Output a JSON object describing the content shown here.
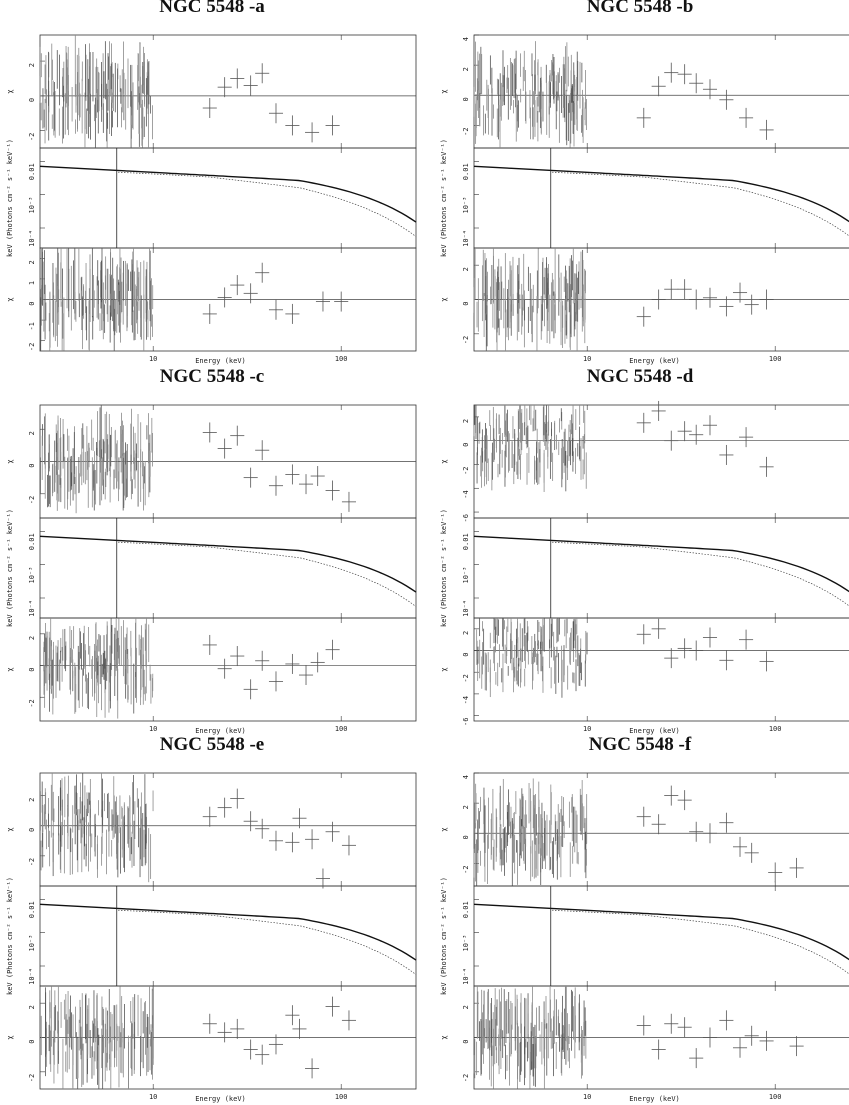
{
  "figure": {
    "x_axis_label": "Energy (keV)",
    "x_ticks": [
      "10",
      "100"
    ],
    "y_label_ratio": "χ",
    "y_label_model": "keV (Photons cm⁻² s⁻¹ keV⁻¹)"
  },
  "chart_data": [
    {
      "type": "scatter",
      "title": "NGC 5548 -a",
      "xscale": "log",
      "xlim": [
        2.5,
        250
      ],
      "xlabel": "Energy (keV)",
      "panels": [
        {
          "role": "residuals (top)",
          "ylabel": "χ",
          "ylim": [
            -3,
            3.5
          ],
          "yticks": [
            -2,
            0,
            2
          ],
          "pds_points": [
            [
              20,
              -0.7
            ],
            [
              24,
              0.5
            ],
            [
              28,
              1.0
            ],
            [
              33,
              0.6
            ],
            [
              38,
              1.3
            ],
            [
              45,
              -1.0
            ],
            [
              55,
              -1.7
            ],
            [
              70,
              -2.1
            ],
            [
              90,
              -1.7
            ]
          ]
        },
        {
          "role": "unfolded model",
          "ylabel": "keV (Photons cm⁻² s⁻¹ keV⁻¹)",
          "yscale": "log",
          "ytick_labels": [
            "0.01",
            "10⁻³",
            "10⁻⁴"
          ]
        },
        {
          "role": "residuals (bottom)",
          "ylabel": "χ",
          "ylim": [
            -2.5,
            2.5
          ],
          "yticks": [
            -2,
            -1,
            0,
            1,
            2
          ],
          "pds_points": [
            [
              20,
              -0.7
            ],
            [
              24,
              0.1
            ],
            [
              28,
              0.7
            ],
            [
              33,
              0.3
            ],
            [
              38,
              1.3
            ],
            [
              45,
              -0.5
            ],
            [
              55,
              -0.7
            ],
            [
              80,
              -0.1
            ],
            [
              100,
              -0.1
            ]
          ]
        }
      ]
    },
    {
      "type": "scatter",
      "title": "NGC 5548 -b",
      "xscale": "log",
      "xlim": [
        2.5,
        250
      ],
      "xlabel": "Energy (keV)",
      "panels": [
        {
          "role": "residuals (top)",
          "ylabel": "χ",
          "ylim": [
            -3.5,
            4
          ],
          "yticks": [
            -2,
            0,
            2,
            4
          ],
          "pds_points": [
            [
              20,
              -1.5
            ],
            [
              24,
              0.6
            ],
            [
              28,
              1.5
            ],
            [
              33,
              1.4
            ],
            [
              38,
              0.8
            ],
            [
              45,
              0.4
            ],
            [
              55,
              -0.3
            ],
            [
              70,
              -1.5
            ],
            [
              90,
              -2.3
            ]
          ]
        },
        {
          "role": "unfolded model",
          "ylabel": "keV (Photons cm⁻² s⁻¹ keV⁻¹)",
          "yscale": "log",
          "ytick_labels": [
            "0.01",
            "10⁻³",
            "10⁻⁴"
          ]
        },
        {
          "role": "residuals (bottom)",
          "ylabel": "χ",
          "ylim": [
            -3,
            3
          ],
          "yticks": [
            -2,
            0,
            2
          ],
          "pds_points": [
            [
              20,
              -1.0
            ],
            [
              24,
              0.0
            ],
            [
              28,
              0.6
            ],
            [
              33,
              0.6
            ],
            [
              38,
              0.0
            ],
            [
              45,
              0.1
            ],
            [
              55,
              -0.4
            ],
            [
              65,
              0.4
            ],
            [
              75,
              -0.3
            ],
            [
              90,
              0.0
            ]
          ]
        }
      ]
    },
    {
      "type": "scatter",
      "title": "NGC 5548 -c",
      "xscale": "log",
      "xlim": [
        2.5,
        250
      ],
      "xlabel": "Energy (keV)",
      "panels": [
        {
          "role": "residuals (top)",
          "ylabel": "χ",
          "ylim": [
            -3.5,
            3.5
          ],
          "yticks": [
            -2,
            0,
            2
          ],
          "pds_points": [
            [
              20,
              1.8
            ],
            [
              24,
              0.8
            ],
            [
              28,
              1.6
            ],
            [
              33,
              -1.0
            ],
            [
              38,
              0.7
            ],
            [
              45,
              -1.5
            ],
            [
              55,
              -0.8
            ],
            [
              65,
              -1.4
            ],
            [
              75,
              -0.9
            ],
            [
              90,
              -1.8
            ],
            [
              110,
              -2.5
            ]
          ]
        },
        {
          "role": "unfolded model",
          "ylabel": "keV (Photons cm⁻² s⁻¹ keV⁻¹)",
          "yscale": "log",
          "ytick_labels": [
            "0.01",
            "10⁻³",
            "10⁻⁴"
          ]
        },
        {
          "role": "residuals (bottom)",
          "ylabel": "χ",
          "ylim": [
            -3.5,
            3
          ],
          "yticks": [
            -2,
            0,
            2
          ],
          "pds_points": [
            [
              20,
              1.3
            ],
            [
              24,
              -0.2
            ],
            [
              28,
              0.6
            ],
            [
              33,
              -1.5
            ],
            [
              38,
              0.3
            ],
            [
              45,
              -1.0
            ],
            [
              55,
              0.1
            ],
            [
              65,
              -0.6
            ],
            [
              75,
              0.2
            ],
            [
              90,
              1.0
            ]
          ]
        }
      ]
    },
    {
      "type": "scatter",
      "title": "NGC 5548 -d",
      "xscale": "log",
      "xlim": [
        2.5,
        250
      ],
      "xlabel": "Energy (keV)",
      "panels": [
        {
          "role": "residuals (top)",
          "ylabel": "χ",
          "ylim": [
            -6.5,
            3
          ],
          "yticks": [
            -6,
            -4,
            -2,
            0,
            2
          ],
          "pds_points": [
            [
              20,
              1.5
            ],
            [
              24,
              2.5
            ],
            [
              28,
              0.0
            ],
            [
              33,
              0.8
            ],
            [
              38,
              0.5
            ],
            [
              45,
              1.3
            ],
            [
              55,
              -1.2
            ],
            [
              70,
              0.3
            ],
            [
              90,
              -2.2
            ]
          ]
        },
        {
          "role": "unfolded model",
          "ylabel": "keV (Photons cm⁻² s⁻¹ keV⁻¹)",
          "yscale": "log",
          "ytick_labels": [
            "0.01",
            "10⁻³",
            "10⁻⁴"
          ]
        },
        {
          "role": "residuals (bottom)",
          "ylabel": "χ",
          "ylim": [
            -6.5,
            3
          ],
          "yticks": [
            -6,
            -4,
            -2,
            0,
            2
          ],
          "pds_points": [
            [
              20,
              1.5
            ],
            [
              24,
              2.0
            ],
            [
              28,
              -0.7
            ],
            [
              33,
              0.2
            ],
            [
              38,
              0.0
            ],
            [
              45,
              1.2
            ],
            [
              55,
              -0.9
            ],
            [
              70,
              1.0
            ],
            [
              90,
              -1.0
            ]
          ]
        }
      ]
    },
    {
      "type": "scatter",
      "title": "NGC 5548 -e",
      "xscale": "log",
      "xlim": [
        2.5,
        250
      ],
      "xlabel": "Energy (keV)",
      "panels": [
        {
          "role": "residuals (top)",
          "ylabel": "χ",
          "ylim": [
            -4,
            3.5
          ],
          "yticks": [
            -2,
            0,
            2
          ],
          "pds_points": [
            [
              20,
              0.6
            ],
            [
              24,
              1.2
            ],
            [
              28,
              1.8
            ],
            [
              33,
              0.3
            ],
            [
              38,
              -0.2
            ],
            [
              45,
              -1.0
            ],
            [
              55,
              -1.1
            ],
            [
              60,
              0.5
            ],
            [
              70,
              -0.9
            ],
            [
              80,
              -3.5
            ],
            [
              90,
              -0.4
            ],
            [
              110,
              -1.3
            ]
          ]
        },
        {
          "role": "unfolded model",
          "ylabel": "keV (Photons cm⁻² s⁻¹ keV⁻¹)",
          "yscale": "log",
          "ytick_labels": [
            "0.01",
            "10⁻³",
            "10⁻⁴"
          ]
        },
        {
          "role": "residuals (bottom)",
          "ylabel": "χ",
          "ylim": [
            -3,
            3
          ],
          "yticks": [
            -2,
            0,
            2
          ],
          "pds_points": [
            [
              20,
              0.8
            ],
            [
              24,
              0.3
            ],
            [
              28,
              0.5
            ],
            [
              33,
              -0.7
            ],
            [
              38,
              -1.0
            ],
            [
              45,
              -0.4
            ],
            [
              55,
              1.3
            ],
            [
              60,
              0.5
            ],
            [
              70,
              -1.8
            ],
            [
              90,
              1.8
            ],
            [
              110,
              1.0
            ]
          ]
        }
      ]
    },
    {
      "type": "scatter",
      "title": "NGC 5548 -f",
      "xscale": "log",
      "xlim": [
        2.5,
        250
      ],
      "xlabel": "Energy (keV)",
      "panels": [
        {
          "role": "residuals (top)",
          "ylabel": "χ",
          "ylim": [
            -3.5,
            4
          ],
          "yticks": [
            -2,
            0,
            2,
            4
          ],
          "pds_points": [
            [
              20,
              1.1
            ],
            [
              24,
              0.6
            ],
            [
              28,
              2.5
            ],
            [
              33,
              2.2
            ],
            [
              38,
              0.1
            ],
            [
              45,
              0.0
            ],
            [
              55,
              0.7
            ],
            [
              65,
              -0.9
            ],
            [
              75,
              -1.3
            ],
            [
              100,
              -2.6
            ],
            [
              130,
              -2.3
            ]
          ]
        },
        {
          "role": "unfolded model",
          "ylabel": "keV (Photons cm⁻² s⁻¹ keV⁻¹)",
          "yscale": "log",
          "ytick_labels": [
            "0.01",
            "10⁻³",
            "10⁻⁴"
          ]
        },
        {
          "role": "residuals (bottom)",
          "ylabel": "χ",
          "ylim": [
            -3,
            3
          ],
          "yticks": [
            -2,
            0,
            2
          ],
          "pds_points": [
            [
              20,
              0.7
            ],
            [
              24,
              -0.7
            ],
            [
              28,
              0.8
            ],
            [
              33,
              0.6
            ],
            [
              38,
              -1.2
            ],
            [
              45,
              0.0
            ],
            [
              55,
              1.0
            ],
            [
              65,
              -0.6
            ],
            [
              75,
              0.1
            ],
            [
              90,
              -0.2
            ],
            [
              130,
              -0.5
            ]
          ]
        }
      ]
    }
  ]
}
